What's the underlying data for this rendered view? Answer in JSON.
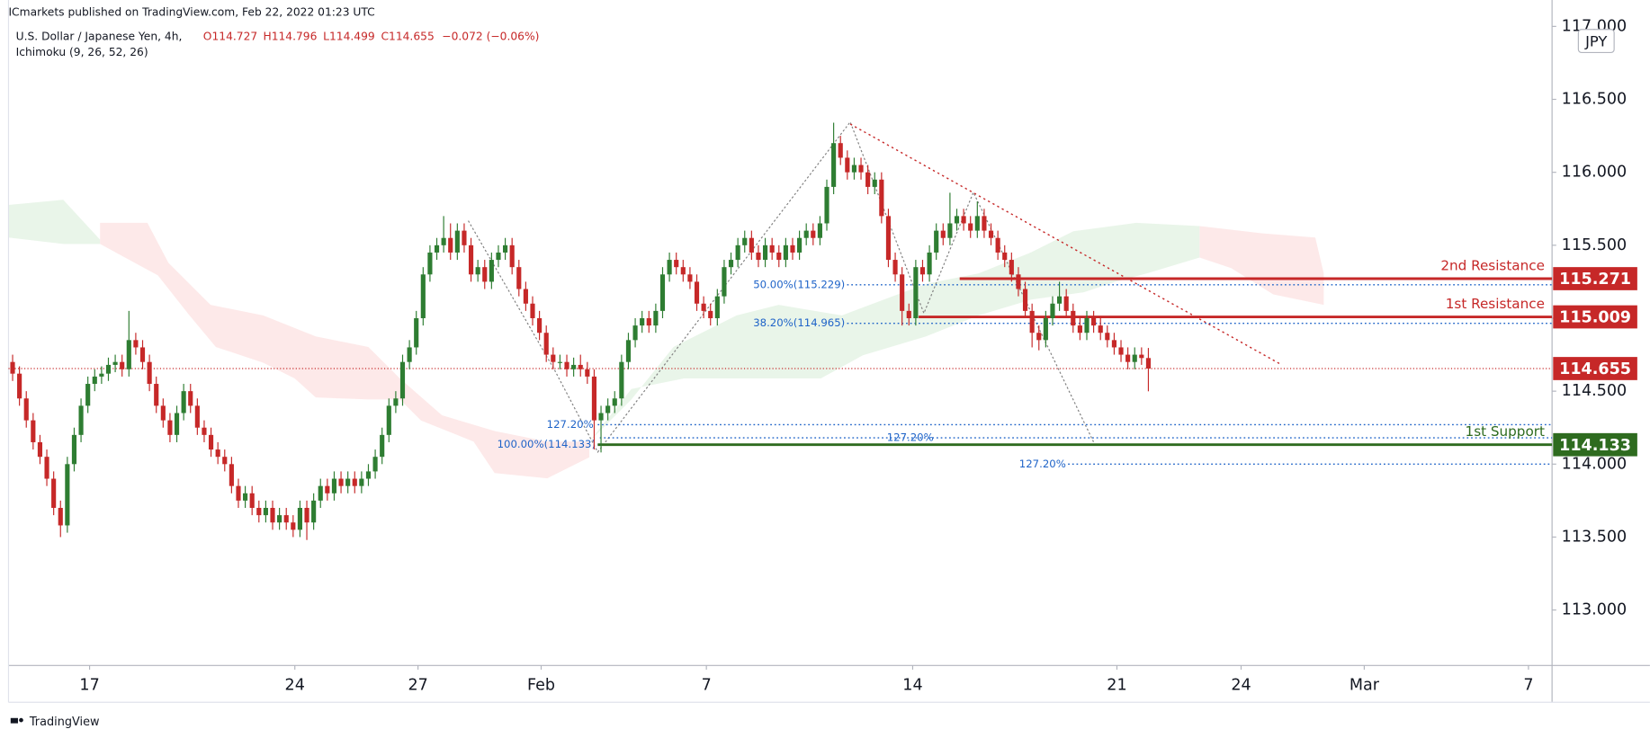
{
  "header": {
    "publisher": "ICmarkets published on TradingView.com, Feb 22, 2022 01:23 UTC",
    "symbol": "U.S. Dollar / Japanese Yen, 4h,",
    "indicator": "Ichimoku (9, 26, 52, 26)",
    "open": "O114.727",
    "high": "H114.796",
    "low": "L114.499",
    "close": "C114.655",
    "change": "−0.072 (−0.06%)",
    "currency": "JPY"
  },
  "chart_data": {
    "type": "candlestick",
    "open": [
      114.7,
      114.62,
      114.45,
      114.3,
      114.15,
      114.05,
      113.9,
      113.7,
      113.58,
      114.0,
      114.2,
      114.4,
      114.55,
      114.6,
      114.62,
      114.68,
      114.7,
      114.65,
      114.85,
      114.8,
      114.7,
      114.55,
      114.4,
      114.3,
      114.2,
      114.35,
      114.5,
      114.4,
      114.25,
      114.2,
      114.1,
      114.05,
      114.0,
      113.85,
      113.75,
      113.8,
      113.7,
      113.65,
      113.7,
      113.6,
      113.65,
      113.6,
      113.55,
      113.7,
      113.6,
      113.75,
      113.85,
      113.8,
      113.9,
      113.85,
      113.9,
      113.85,
      113.9,
      113.95,
      114.05,
      114.2,
      114.4,
      114.45,
      114.7,
      114.8,
      115.0,
      115.3,
      115.45,
      115.5,
      115.55,
      115.45,
      115.6,
      115.5,
      115.3,
      115.35,
      115.25,
      115.4,
      115.45,
      115.5,
      115.35,
      115.2,
      115.1,
      115.0,
      114.9,
      114.75,
      114.7,
      114.7,
      114.65,
      114.68,
      114.65,
      114.6,
      114.3,
      114.35,
      114.4,
      114.45,
      114.7,
      114.85,
      114.95,
      115.0,
      114.95,
      115.05,
      115.3,
      115.4,
      115.35,
      115.3,
      115.25,
      115.1,
      115.05,
      115.0,
      115.15,
      115.35,
      115.4,
      115.5,
      115.55,
      115.45,
      115.4,
      115.5,
      115.45,
      115.4,
      115.5,
      115.45,
      115.55,
      115.6,
      115.55,
      115.65,
      115.9,
      116.2,
      116.1,
      116.0,
      116.05,
      116.0,
      115.9,
      115.95,
      115.7,
      115.4,
      115.3,
      115.05,
      115.0,
      115.35,
      115.3,
      115.45,
      115.6,
      115.55,
      115.65,
      115.7,
      115.65,
      115.6,
      115.7,
      115.6,
      115.55,
      115.45,
      115.4,
      115.3,
      115.2,
      115.05,
      114.9,
      114.85,
      115.0,
      115.1,
      115.15,
      115.05,
      114.95,
      114.9,
      115.0,
      114.95,
      114.9,
      114.85,
      114.8,
      114.75,
      114.7,
      114.75,
      114.727
    ],
    "high": [
      114.75,
      114.67,
      114.5,
      114.35,
      114.2,
      114.1,
      113.95,
      113.75,
      114.05,
      114.25,
      114.45,
      114.6,
      114.65,
      114.67,
      114.73,
      114.75,
      114.75,
      115.05,
      114.9,
      114.85,
      114.75,
      114.6,
      114.45,
      114.35,
      114.4,
      114.55,
      114.55,
      114.45,
      114.3,
      114.25,
      114.15,
      114.1,
      114.05,
      113.9,
      113.85,
      113.85,
      113.75,
      113.75,
      113.75,
      113.7,
      113.7,
      113.65,
      113.75,
      113.75,
      113.8,
      113.9,
      113.9,
      113.95,
      113.95,
      113.95,
      113.95,
      113.95,
      114.0,
      114.1,
      114.25,
      114.45,
      114.5,
      114.75,
      114.85,
      115.05,
      115.35,
      115.5,
      115.55,
      115.7,
      115.65,
      115.65,
      115.65,
      115.55,
      115.4,
      115.4,
      115.45,
      115.5,
      115.55,
      115.55,
      115.4,
      115.25,
      115.15,
      115.05,
      114.95,
      114.8,
      114.75,
      114.75,
      114.73,
      114.75,
      114.7,
      114.65,
      114.4,
      114.45,
      114.5,
      114.75,
      114.9,
      115.0,
      115.05,
      115.05,
      115.1,
      115.35,
      115.45,
      115.45,
      115.4,
      115.35,
      115.3,
      115.15,
      115.1,
      115.2,
      115.4,
      115.45,
      115.55,
      115.6,
      115.6,
      115.5,
      115.55,
      115.55,
      115.5,
      115.55,
      115.55,
      115.6,
      115.65,
      115.65,
      115.7,
      115.95,
      116.34,
      116.25,
      116.15,
      116.1,
      116.1,
      116.05,
      116.0,
      116.0,
      115.75,
      115.45,
      115.35,
      115.1,
      115.4,
      115.4,
      115.5,
      115.65,
      115.65,
      115.86,
      115.75,
      115.75,
      115.7,
      115.8,
      115.75,
      115.65,
      115.6,
      115.5,
      115.45,
      115.35,
      115.25,
      115.1,
      114.95,
      115.05,
      115.15,
      115.25,
      115.2,
      115.1,
      115.0,
      115.05,
      115.05,
      115.0,
      114.95,
      114.9,
      114.85,
      114.8,
      114.8,
      114.8,
      114.796
    ],
    "low": [
      114.57,
      114.4,
      114.25,
      114.1,
      114.0,
      113.85,
      113.65,
      113.5,
      113.53,
      113.95,
      114.15,
      114.35,
      114.5,
      114.55,
      114.57,
      114.63,
      114.6,
      114.6,
      114.75,
      114.65,
      114.5,
      114.35,
      114.25,
      114.15,
      114.15,
      114.3,
      114.35,
      114.2,
      114.15,
      114.05,
      114.0,
      113.95,
      113.8,
      113.7,
      113.7,
      113.65,
      113.6,
      113.6,
      113.55,
      113.55,
      113.55,
      113.5,
      113.5,
      113.48,
      113.55,
      113.7,
      113.75,
      113.75,
      113.8,
      113.8,
      113.8,
      113.8,
      113.85,
      113.9,
      114.0,
      114.15,
      114.35,
      114.4,
      114.65,
      114.75,
      114.95,
      115.25,
      115.4,
      115.45,
      115.4,
      115.4,
      115.45,
      115.25,
      115.25,
      115.2,
      115.2,
      115.35,
      115.4,
      115.3,
      115.15,
      115.05,
      114.95,
      114.85,
      114.7,
      114.65,
      114.65,
      114.6,
      114.6,
      114.6,
      114.55,
      114.1,
      114.08,
      114.3,
      114.35,
      114.4,
      114.65,
      114.8,
      114.9,
      114.9,
      114.9,
      115.0,
      115.25,
      115.3,
      115.25,
      115.2,
      115.05,
      115.0,
      114.95,
      114.95,
      115.1,
      115.3,
      115.35,
      115.45,
      115.4,
      115.35,
      115.35,
      115.4,
      115.35,
      115.35,
      115.4,
      115.4,
      115.5,
      115.5,
      115.5,
      115.6,
      115.85,
      116.05,
      115.95,
      115.95,
      115.95,
      115.85,
      115.85,
      115.65,
      115.35,
      115.25,
      114.95,
      114.95,
      114.95,
      115.25,
      115.25,
      115.4,
      115.5,
      115.5,
      115.6,
      115.6,
      115.55,
      115.55,
      115.55,
      115.5,
      115.4,
      115.35,
      115.25,
      115.15,
      115.0,
      114.8,
      114.78,
      114.8,
      114.95,
      115.05,
      115.0,
      114.9,
      114.85,
      114.85,
      114.9,
      114.85,
      114.8,
      114.75,
      114.7,
      114.65,
      114.65,
      114.68,
      114.499
    ],
    "close": [
      114.62,
      114.45,
      114.3,
      114.15,
      114.05,
      113.9,
      113.7,
      113.58,
      114.0,
      114.2,
      114.4,
      114.55,
      114.6,
      114.62,
      114.68,
      114.7,
      114.65,
      114.85,
      114.8,
      114.7,
      114.55,
      114.4,
      114.3,
      114.2,
      114.35,
      114.5,
      114.4,
      114.25,
      114.2,
      114.1,
      114.05,
      114.0,
      113.85,
      113.75,
      113.8,
      113.7,
      113.65,
      113.7,
      113.6,
      113.65,
      113.6,
      113.55,
      113.7,
      113.6,
      113.75,
      113.85,
      113.8,
      113.9,
      113.85,
      113.9,
      113.85,
      113.9,
      113.95,
      114.05,
      114.2,
      114.4,
      114.45,
      114.7,
      114.8,
      115.0,
      115.3,
      115.45,
      115.5,
      115.55,
      115.45,
      115.6,
      115.5,
      115.3,
      115.35,
      115.25,
      115.4,
      115.45,
      115.5,
      115.35,
      115.2,
      115.1,
      115.0,
      114.9,
      114.75,
      114.7,
      114.7,
      114.65,
      114.68,
      114.65,
      114.6,
      114.3,
      114.35,
      114.4,
      114.45,
      114.7,
      114.85,
      114.95,
      115.0,
      114.95,
      115.05,
      115.3,
      115.4,
      115.35,
      115.3,
      115.25,
      115.1,
      115.05,
      115.0,
      115.15,
      115.35,
      115.4,
      115.5,
      115.55,
      115.45,
      115.4,
      115.5,
      115.45,
      115.4,
      115.5,
      115.45,
      115.55,
      115.6,
      115.55,
      115.65,
      115.9,
      116.2,
      116.1,
      116.0,
      116.05,
      116.0,
      115.9,
      115.95,
      115.7,
      115.4,
      115.3,
      115.05,
      115.0,
      115.35,
      115.3,
      115.45,
      115.6,
      115.55,
      115.65,
      115.7,
      115.65,
      115.6,
      115.7,
      115.6,
      115.55,
      115.45,
      115.4,
      115.3,
      115.2,
      115.05,
      114.9,
      114.85,
      115.0,
      115.1,
      115.15,
      115.05,
      114.95,
      114.9,
      115.0,
      114.95,
      114.9,
      114.85,
      114.8,
      114.75,
      114.7,
      114.75,
      114.727,
      114.655
    ],
    "up_color": "#2e7d32",
    "down_color": "#c62828",
    "xlim": [
      -0.6,
      225
    ],
    "xticks": [
      {
        "value": 11.25,
        "label": "17"
      },
      {
        "value": 41.25,
        "label": "24"
      },
      {
        "value": 59.25,
        "label": "27"
      },
      {
        "value": 77.25,
        "label": "Feb"
      },
      {
        "value": 101.4,
        "label": "7"
      },
      {
        "value": 131.55,
        "label": "14"
      },
      {
        "value": 161.4,
        "label": "21"
      },
      {
        "value": 179.55,
        "label": "24"
      },
      {
        "value": 197.55,
        "label": "Mar"
      },
      {
        "value": 221.55,
        "label": "7"
      }
    ],
    "ylim": [
      112.62,
      117.08
    ],
    "yticks": [
      {
        "value": 113,
        "label": "113.000"
      },
      {
        "value": 113.5,
        "label": "113.500"
      },
      {
        "value": 114,
        "label": "114.000"
      },
      {
        "value": 114.5,
        "label": "114.500"
      },
      {
        "value": 115,
        "label": "115.000"
      },
      {
        "value": 115.5,
        "label": "115.500"
      },
      {
        "value": 116,
        "label": "116.000"
      },
      {
        "value": 116.5,
        "label": "116.500"
      },
      {
        "value": 117,
        "label": "117.000"
      }
    ],
    "last_price": {
      "value": 114.655,
      "color": "#c62828"
    },
    "levels": [
      {
        "name": "2nd Resistance",
        "value": 115.271,
        "color": "#c62828"
      },
      {
        "name": "1st Resistance",
        "value": 115.009,
        "color": "#c62828"
      },
      {
        "name": "1st Support",
        "value": 114.133,
        "color": "#2e6b1f"
      }
    ],
    "fib_levels": [
      {
        "label": "50.00%(115.229)",
        "value": 115.229
      },
      {
        "label": "38.20%(114.965)",
        "value": 114.965
      },
      {
        "label": "127.20%",
        "value": 114.27
      },
      {
        "label": "127.20%",
        "value": 114.18
      },
      {
        "label": "100.00%(114.133)",
        "value": 114.133
      },
      {
        "label": "127.20%",
        "value": 114.0
      }
    ],
    "fib_color": "#1e63c8"
  },
  "footer": {
    "brand": "TradingView"
  }
}
